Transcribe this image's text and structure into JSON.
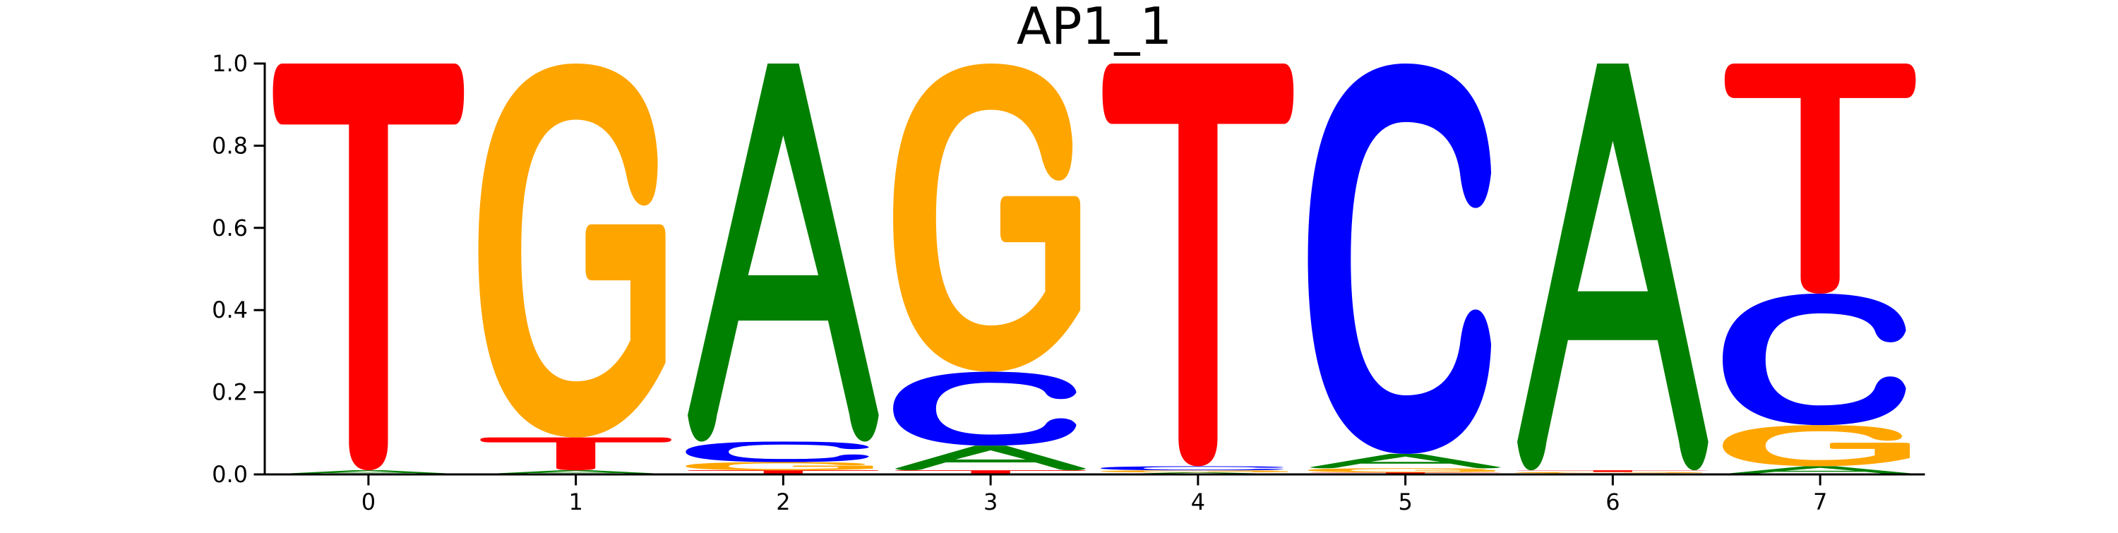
{
  "chart_data": {
    "type": "sequence-logo",
    "title": "AP1_1",
    "xlabel": "",
    "ylabel": "",
    "ylim": [
      0.0,
      1.0
    ],
    "xlim": [
      -0.5,
      7.5
    ],
    "x_ticks": [
      "0",
      "1",
      "2",
      "3",
      "4",
      "5",
      "6",
      "7"
    ],
    "y_ticks": [
      "0.0",
      "0.2",
      "0.4",
      "0.6",
      "0.8",
      "1.0"
    ],
    "grid": false,
    "letter_colors": {
      "A": "#008000",
      "C": "#0000ff",
      "G": "#ffa500",
      "T": "#ff0000"
    },
    "positions": [
      {
        "x": 0,
        "stack": [
          {
            "base": "A",
            "height": 0.01
          },
          {
            "base": "T",
            "height": 0.99
          }
        ]
      },
      {
        "x": 1,
        "stack": [
          {
            "base": "A",
            "height": 0.01
          },
          {
            "base": "T",
            "height": 0.08
          },
          {
            "base": "G",
            "height": 0.91
          }
        ]
      },
      {
        "x": 2,
        "stack": [
          {
            "base": "T",
            "height": 0.01
          },
          {
            "base": "G",
            "height": 0.02
          },
          {
            "base": "C",
            "height": 0.05
          },
          {
            "base": "A",
            "height": 0.92
          }
        ]
      },
      {
        "x": 3,
        "stack": [
          {
            "base": "T",
            "height": 0.01
          },
          {
            "base": "A",
            "height": 0.06
          },
          {
            "base": "C",
            "height": 0.18
          },
          {
            "base": "G",
            "height": 0.75
          }
        ]
      },
      {
        "x": 4,
        "stack": [
          {
            "base": "A",
            "height": 0.005
          },
          {
            "base": "G",
            "height": 0.005
          },
          {
            "base": "C",
            "height": 0.01
          },
          {
            "base": "T",
            "height": 0.98
          }
        ]
      },
      {
        "x": 5,
        "stack": [
          {
            "base": "T",
            "height": 0.005
          },
          {
            "base": "G",
            "height": 0.01
          },
          {
            "base": "A",
            "height": 0.035
          },
          {
            "base": "C",
            "height": 0.95
          }
        ]
      },
      {
        "x": 6,
        "stack": [
          {
            "base": "C",
            "height": 0.003
          },
          {
            "base": "G",
            "height": 0.003
          },
          {
            "base": "T",
            "height": 0.004
          },
          {
            "base": "A",
            "height": 0.99
          }
        ]
      },
      {
        "x": 7,
        "stack": [
          {
            "base": "A",
            "height": 0.02
          },
          {
            "base": "G",
            "height": 0.1
          },
          {
            "base": "C",
            "height": 0.32
          },
          {
            "base": "T",
            "height": 0.56
          }
        ]
      }
    ]
  }
}
